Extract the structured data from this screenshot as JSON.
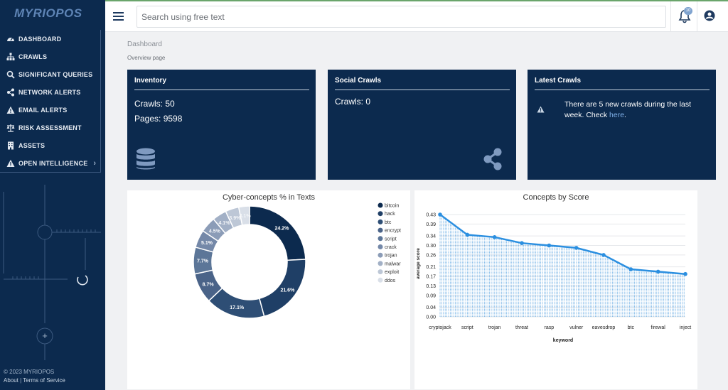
{
  "sidebar": {
    "logo": "MYRIOPOS",
    "items": [
      {
        "label": "DASHBOARD",
        "icon": "gauge-icon"
      },
      {
        "label": "CRAWLS",
        "icon": "sitemap-icon"
      },
      {
        "label": "SIGNIFICANT QUERIES",
        "icon": "search-icon"
      },
      {
        "label": "NETWORK ALERTS",
        "icon": "share-icon"
      },
      {
        "label": "EMAIL ALERTS",
        "icon": "warning-icon"
      },
      {
        "label": "RISK ASSESSMENT",
        "icon": "balance-scale-icon"
      },
      {
        "label": "ASSETS",
        "icon": "building-icon"
      },
      {
        "label": "OPEN INTELLIGENCE",
        "icon": "warning-icon"
      }
    ],
    "footer": {
      "copyright": "© 2023 MYRIOPOS",
      "about": "About",
      "divider": "|",
      "terms": "Terms of Service"
    }
  },
  "topbar": {
    "search_placeholder": "Search using free text",
    "notification_count": "10"
  },
  "page": {
    "breadcrumb": "Dashboard",
    "subtitle": "Overview page"
  },
  "cards": {
    "inventory": {
      "title": "Inventory",
      "crawls": "Crawls: 50",
      "pages": "Pages: 9598"
    },
    "social": {
      "title": "Social Crawls",
      "crawls": "Crawls: 0"
    },
    "latest": {
      "title": "Latest Crawls",
      "text_before": "There are 5 new crawls during the last week. Check ",
      "link": "here",
      "text_after": "."
    }
  },
  "colors": {
    "navy": "#0c2a4e",
    "line_blue": "#2b8fe0",
    "link": "#7fb0e8"
  },
  "chart_data": [
    {
      "type": "pie",
      "title": "Cyber-concepts % in Texts",
      "categories": [
        "bitcoin",
        "hack",
        "btc",
        "encrypt",
        "script",
        "crack",
        "trojan",
        "malwar",
        "exploit",
        "ddos"
      ],
      "values": [
        24.2,
        21.6,
        17.1,
        8.7,
        7.7,
        5.1,
        4.5,
        4.1,
        3.9,
        3.1
      ],
      "labels": [
        "24.2%",
        "21.6%",
        "17.1%",
        "8.7%",
        "7.7%",
        "5.1%",
        "4.5%",
        "4.1%",
        "3.9%",
        "3.1%"
      ],
      "colors": [
        "#0c2a4e",
        "#1f3f66",
        "#2e4e75",
        "#4a6388",
        "#5c7698",
        "#7488a8",
        "#8b9cb7",
        "#a2b0c6",
        "#bdc7d6",
        "#d9dfe8"
      ],
      "legend_position": "right"
    },
    {
      "type": "area",
      "title": "Concepts by Score",
      "categories": [
        "cryptojack",
        "script",
        "trojan",
        "threat",
        "rasp",
        "vulner",
        "eavesdrop",
        "btc",
        "firewal",
        "inject"
      ],
      "values": [
        0.43,
        0.345,
        0.335,
        0.31,
        0.3,
        0.29,
        0.26,
        0.2,
        0.19,
        0.18
      ],
      "yticks": [
        "0.00",
        "0.04",
        "0.09",
        "0.13",
        "0.17",
        "0.21",
        "0.26",
        "0.30",
        "0.34",
        "0.39",
        "0.43"
      ],
      "ylim": [
        0,
        0.43
      ],
      "xlabel": "keyword",
      "ylabel": "average score",
      "grid": true
    }
  ]
}
